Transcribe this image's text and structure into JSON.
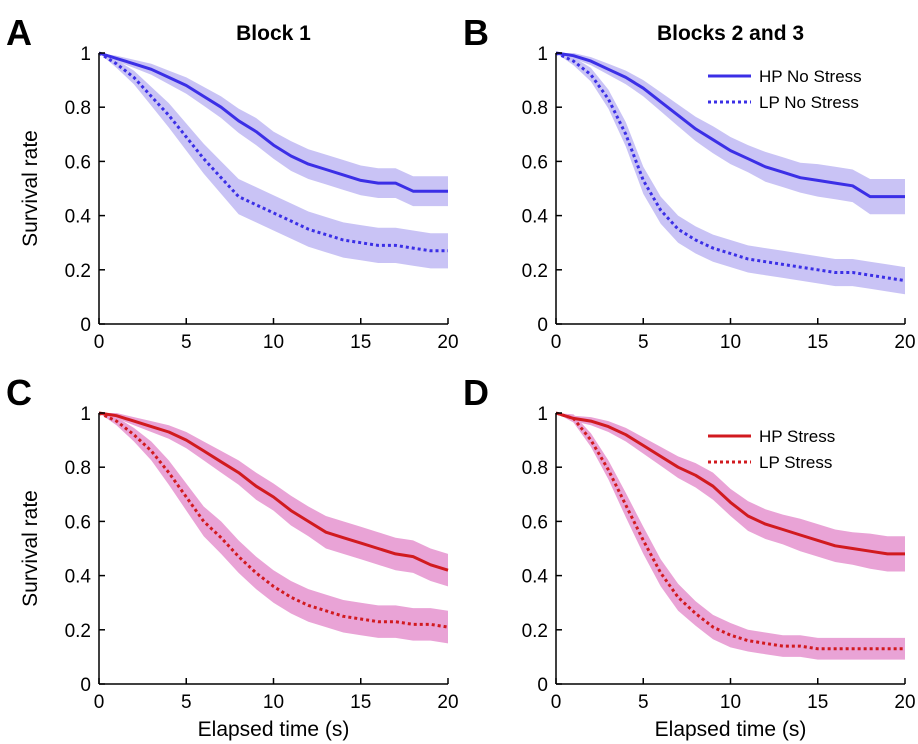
{
  "figure": {
    "colors": {
      "blue_line": "#3b2fe6",
      "blue_band": "#c9c3f5",
      "red_line": "#d11a1f",
      "red_band": "#e9a3d6"
    }
  },
  "chart_data": [
    {
      "type": "line",
      "panel": "A",
      "title": "Block 1",
      "xlabel": "",
      "ylabel": "Survival rate",
      "xlim": [
        0,
        20
      ],
      "ylim": [
        0,
        1
      ],
      "xticks": [
        "0",
        "5",
        "10",
        "15",
        "20"
      ],
      "yticks": [
        "0",
        "0.2",
        "0.4",
        "0.6",
        "0.8",
        "1"
      ],
      "grid": false,
      "legend": null,
      "series": [
        {
          "style": "solid",
          "color_key": "blue",
          "x": [
            0,
            1,
            2,
            3,
            4,
            5,
            6,
            7,
            8,
            9,
            10,
            11,
            12,
            13,
            14,
            15,
            16,
            17,
            18,
            19,
            20
          ],
          "values": [
            1.0,
            0.98,
            0.96,
            0.94,
            0.91,
            0.88,
            0.84,
            0.8,
            0.75,
            0.71,
            0.66,
            0.62,
            0.59,
            0.57,
            0.55,
            0.53,
            0.52,
            0.52,
            0.49,
            0.49,
            0.49
          ],
          "band_half_width": [
            0.0,
            0.01,
            0.015,
            0.02,
            0.025,
            0.03,
            0.035,
            0.04,
            0.045,
            0.05,
            0.05,
            0.055,
            0.055,
            0.055,
            0.055,
            0.055,
            0.055,
            0.055,
            0.055,
            0.055,
            0.055
          ]
        },
        {
          "style": "dotted",
          "color_key": "blue",
          "x": [
            0,
            1,
            2,
            3,
            4,
            5,
            6,
            7,
            8,
            9,
            10,
            11,
            12,
            13,
            14,
            15,
            16,
            17,
            18,
            19,
            20
          ],
          "values": [
            1.0,
            0.96,
            0.91,
            0.84,
            0.77,
            0.69,
            0.61,
            0.54,
            0.47,
            0.44,
            0.41,
            0.38,
            0.35,
            0.33,
            0.31,
            0.3,
            0.29,
            0.29,
            0.28,
            0.27,
            0.27
          ],
          "band_half_width": [
            0.0,
            0.015,
            0.025,
            0.035,
            0.045,
            0.05,
            0.055,
            0.06,
            0.065,
            0.065,
            0.065,
            0.065,
            0.065,
            0.065,
            0.065,
            0.065,
            0.065,
            0.065,
            0.065,
            0.065,
            0.065
          ]
        }
      ]
    },
    {
      "type": "line",
      "panel": "B",
      "title": "Blocks 2 and 3",
      "xlabel": "",
      "ylabel": "",
      "xlim": [
        0,
        20
      ],
      "ylim": [
        0,
        1
      ],
      "xticks": [
        "0",
        "5",
        "10",
        "15",
        "20"
      ],
      "yticks": [
        "0",
        "0.2",
        "0.4",
        "0.6",
        "0.8",
        "1"
      ],
      "grid": false,
      "legend": "top-right",
      "series": [
        {
          "name": "HP No Stress",
          "style": "solid",
          "color_key": "blue",
          "x": [
            0,
            1,
            2,
            3,
            4,
            5,
            6,
            7,
            8,
            9,
            10,
            11,
            12,
            13,
            14,
            15,
            16,
            17,
            18,
            19,
            20
          ],
          "values": [
            1.0,
            0.99,
            0.97,
            0.94,
            0.91,
            0.87,
            0.82,
            0.77,
            0.72,
            0.68,
            0.64,
            0.61,
            0.58,
            0.56,
            0.54,
            0.53,
            0.52,
            0.51,
            0.47,
            0.47,
            0.47
          ],
          "band_half_width": [
            0.0,
            0.01,
            0.015,
            0.02,
            0.025,
            0.03,
            0.035,
            0.04,
            0.045,
            0.05,
            0.05,
            0.05,
            0.055,
            0.055,
            0.055,
            0.06,
            0.06,
            0.06,
            0.065,
            0.065,
            0.065
          ]
        },
        {
          "name": "LP No Stress",
          "style": "dotted",
          "color_key": "blue",
          "x": [
            0,
            1,
            2,
            3,
            4,
            5,
            6,
            7,
            8,
            9,
            10,
            11,
            12,
            13,
            14,
            15,
            16,
            17,
            18,
            19,
            20
          ],
          "values": [
            1.0,
            0.97,
            0.92,
            0.83,
            0.7,
            0.53,
            0.42,
            0.35,
            0.31,
            0.28,
            0.26,
            0.24,
            0.23,
            0.22,
            0.21,
            0.2,
            0.19,
            0.19,
            0.18,
            0.17,
            0.16
          ],
          "band_half_width": [
            0.0,
            0.015,
            0.025,
            0.035,
            0.045,
            0.05,
            0.05,
            0.05,
            0.05,
            0.05,
            0.05,
            0.05,
            0.05,
            0.05,
            0.05,
            0.05,
            0.05,
            0.05,
            0.05,
            0.05,
            0.05
          ]
        }
      ]
    },
    {
      "type": "line",
      "panel": "C",
      "title": "",
      "xlabel": "Elapsed time (s)",
      "ylabel": "Survival rate",
      "xlim": [
        0,
        20
      ],
      "ylim": [
        0,
        1
      ],
      "xticks": [
        "0",
        "5",
        "10",
        "15",
        "20"
      ],
      "yticks": [
        "0",
        "0.2",
        "0.4",
        "0.6",
        "0.8",
        "1"
      ],
      "grid": false,
      "legend": null,
      "series": [
        {
          "style": "solid",
          "color_key": "red",
          "x": [
            0,
            1,
            2,
            3,
            4,
            5,
            6,
            7,
            8,
            9,
            10,
            11,
            12,
            13,
            14,
            15,
            16,
            17,
            18,
            19,
            20
          ],
          "values": [
            1.0,
            0.99,
            0.97,
            0.95,
            0.93,
            0.9,
            0.86,
            0.82,
            0.78,
            0.73,
            0.69,
            0.64,
            0.6,
            0.56,
            0.54,
            0.52,
            0.5,
            0.48,
            0.47,
            0.44,
            0.42
          ],
          "band_half_width": [
            0.0,
            0.01,
            0.015,
            0.02,
            0.025,
            0.03,
            0.035,
            0.04,
            0.045,
            0.05,
            0.05,
            0.055,
            0.055,
            0.06,
            0.06,
            0.06,
            0.06,
            0.06,
            0.06,
            0.06,
            0.06
          ]
        },
        {
          "style": "dotted",
          "color_key": "red",
          "x": [
            0,
            1,
            2,
            3,
            4,
            5,
            6,
            7,
            8,
            9,
            10,
            11,
            12,
            13,
            14,
            15,
            16,
            17,
            18,
            19,
            20
          ],
          "values": [
            1.0,
            0.97,
            0.92,
            0.86,
            0.78,
            0.69,
            0.6,
            0.54,
            0.47,
            0.41,
            0.36,
            0.32,
            0.29,
            0.27,
            0.25,
            0.24,
            0.23,
            0.23,
            0.22,
            0.22,
            0.21
          ],
          "band_half_width": [
            0.0,
            0.015,
            0.025,
            0.035,
            0.045,
            0.05,
            0.055,
            0.06,
            0.06,
            0.06,
            0.06,
            0.06,
            0.06,
            0.06,
            0.06,
            0.06,
            0.06,
            0.06,
            0.06,
            0.06,
            0.06
          ]
        }
      ]
    },
    {
      "type": "line",
      "panel": "D",
      "title": "",
      "xlabel": "Elapsed time (s)",
      "ylabel": "",
      "xlim": [
        0,
        20
      ],
      "ylim": [
        0,
        1
      ],
      "xticks": [
        "0",
        "5",
        "10",
        "15",
        "20"
      ],
      "yticks": [
        "0",
        "0.2",
        "0.4",
        "0.6",
        "0.8",
        "1"
      ],
      "grid": false,
      "legend": "top-right",
      "series": [
        {
          "name": "HP Stress",
          "style": "solid",
          "color_key": "red",
          "x": [
            0,
            1,
            2,
            3,
            4,
            5,
            6,
            7,
            8,
            9,
            10,
            11,
            12,
            13,
            14,
            15,
            16,
            17,
            18,
            19,
            20
          ],
          "values": [
            1.0,
            0.98,
            0.97,
            0.95,
            0.92,
            0.88,
            0.84,
            0.8,
            0.77,
            0.73,
            0.67,
            0.62,
            0.59,
            0.57,
            0.55,
            0.53,
            0.51,
            0.5,
            0.49,
            0.48,
            0.48
          ],
          "band_half_width": [
            0.0,
            0.01,
            0.015,
            0.02,
            0.025,
            0.03,
            0.035,
            0.04,
            0.045,
            0.05,
            0.05,
            0.055,
            0.055,
            0.055,
            0.06,
            0.06,
            0.06,
            0.06,
            0.065,
            0.065,
            0.065
          ]
        },
        {
          "name": "LP Stress",
          "style": "dotted",
          "color_key": "red",
          "x": [
            0,
            1,
            2,
            3,
            4,
            5,
            6,
            7,
            8,
            9,
            10,
            11,
            12,
            13,
            14,
            15,
            16,
            17,
            18,
            19,
            20
          ],
          "values": [
            1.0,
            0.98,
            0.9,
            0.79,
            0.66,
            0.53,
            0.41,
            0.32,
            0.26,
            0.21,
            0.18,
            0.16,
            0.15,
            0.14,
            0.14,
            0.13,
            0.13,
            0.13,
            0.13,
            0.13,
            0.13
          ],
          "band_half_width": [
            0.0,
            0.015,
            0.025,
            0.035,
            0.045,
            0.05,
            0.05,
            0.05,
            0.045,
            0.045,
            0.045,
            0.04,
            0.04,
            0.04,
            0.04,
            0.04,
            0.04,
            0.04,
            0.04,
            0.04,
            0.04
          ]
        }
      ]
    }
  ]
}
